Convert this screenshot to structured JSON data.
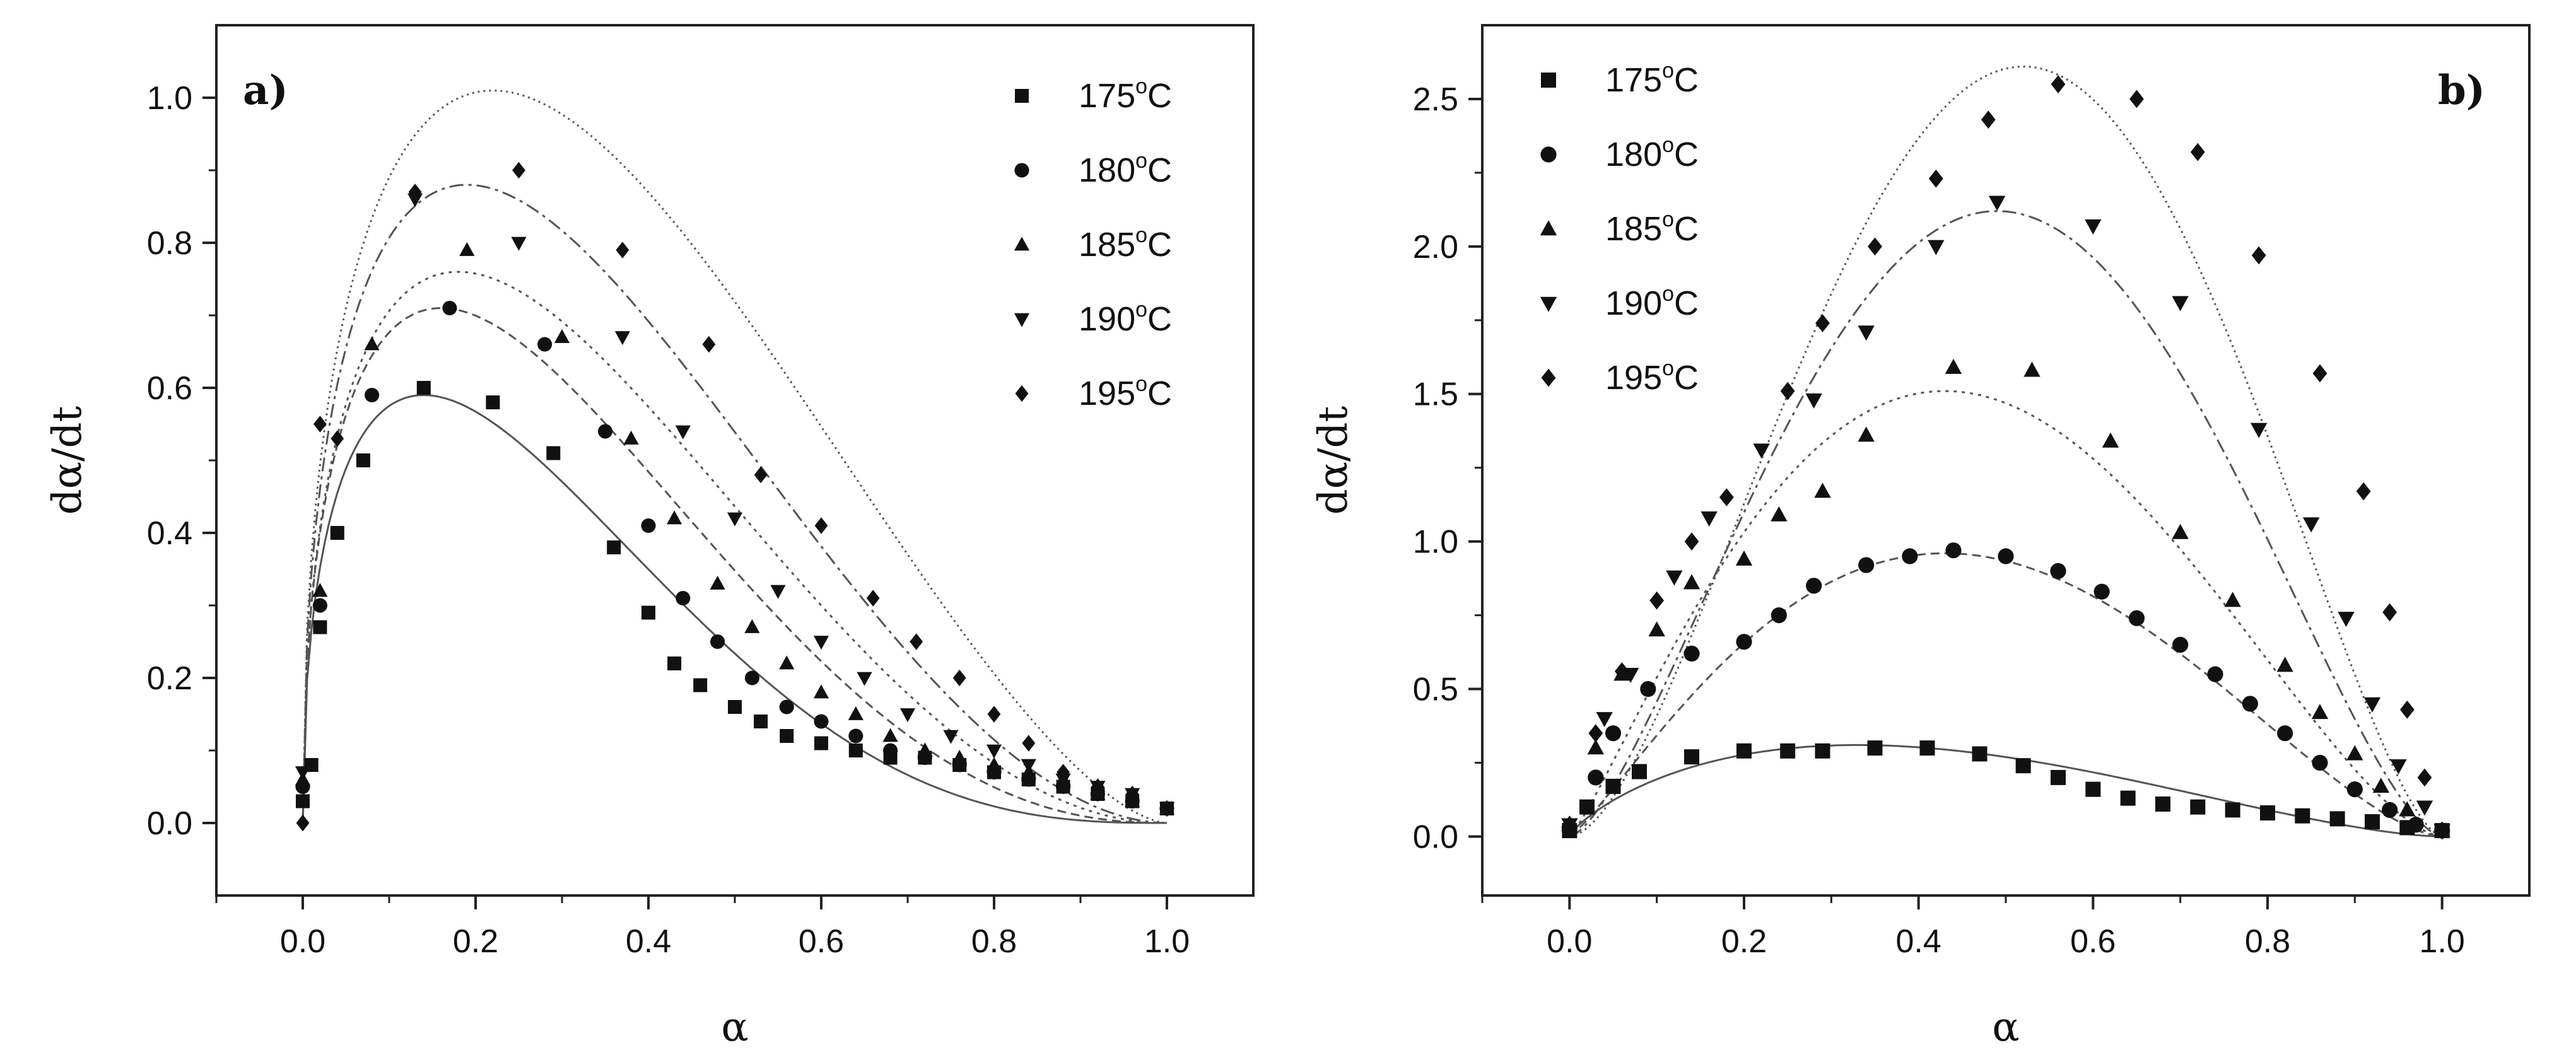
{
  "chart_data": [
    {
      "panel": "a)",
      "type": "scatter",
      "xlabel": "α",
      "ylabel": "dα/dt",
      "xlim": [
        -0.1,
        1.1
      ],
      "ylim": [
        -0.1,
        1.1
      ],
      "xticks": [
        "0.0",
        "0.2",
        "0.4",
        "0.6",
        "0.8",
        "1.0"
      ],
      "yticks": [
        "0.0",
        "0.2",
        "0.4",
        "0.6",
        "0.8",
        "1.0"
      ],
      "legend_position": "top-right",
      "series": [
        {
          "name": "175",
          "unit": "°C",
          "marker": "square",
          "points": [
            [
              0,
              0.03
            ],
            [
              0.01,
              0.08
            ],
            [
              0.02,
              0.27
            ],
            [
              0.04,
              0.4
            ],
            [
              0.07,
              0.5
            ],
            [
              0.14,
              0.6
            ],
            [
              0.22,
              0.58
            ],
            [
              0.29,
              0.51
            ],
            [
              0.36,
              0.38
            ],
            [
              0.4,
              0.29
            ],
            [
              0.43,
              0.22
            ],
            [
              0.46,
              0.19
            ],
            [
              0.5,
              0.16
            ],
            [
              0.53,
              0.14
            ],
            [
              0.56,
              0.12
            ],
            [
              0.6,
              0.11
            ],
            [
              0.64,
              0.1
            ],
            [
              0.68,
              0.09
            ],
            [
              0.72,
              0.09
            ],
            [
              0.76,
              0.08
            ],
            [
              0.8,
              0.07
            ],
            [
              0.84,
              0.06
            ],
            [
              0.88,
              0.05
            ],
            [
              0.92,
              0.04
            ],
            [
              0.96,
              0.03
            ],
            [
              1.0,
              0.02
            ]
          ],
          "fit_peak": [
            0.14,
            0.59
          ]
        },
        {
          "name": "180",
          "unit": "°C",
          "marker": "circle",
          "points": [
            [
              0,
              0.05
            ],
            [
              0.02,
              0.3
            ],
            [
              0.08,
              0.59
            ],
            [
              0.17,
              0.71
            ],
            [
              0.28,
              0.66
            ],
            [
              0.35,
              0.54
            ],
            [
              0.4,
              0.41
            ],
            [
              0.44,
              0.31
            ],
            [
              0.48,
              0.25
            ],
            [
              0.52,
              0.2
            ],
            [
              0.56,
              0.16
            ],
            [
              0.6,
              0.14
            ],
            [
              0.64,
              0.12
            ],
            [
              0.68,
              0.1
            ],
            [
              0.72,
              0.09
            ],
            [
              0.76,
              0.08
            ],
            [
              0.8,
              0.07
            ],
            [
              0.84,
              0.06
            ],
            [
              0.88,
              0.05
            ],
            [
              0.92,
              0.04
            ],
            [
              0.96,
              0.03
            ],
            [
              1.0,
              0.02
            ]
          ],
          "fit_peak": [
            0.16,
            0.71
          ]
        },
        {
          "name": "185",
          "unit": "°C",
          "marker": "triangle-up",
          "points": [
            [
              0,
              0.06
            ],
            [
              0.02,
              0.32
            ],
            [
              0.08,
              0.66
            ],
            [
              0.19,
              0.79
            ],
            [
              0.3,
              0.67
            ],
            [
              0.38,
              0.53
            ],
            [
              0.43,
              0.42
            ],
            [
              0.48,
              0.33
            ],
            [
              0.52,
              0.27
            ],
            [
              0.56,
              0.22
            ],
            [
              0.6,
              0.18
            ],
            [
              0.64,
              0.15
            ],
            [
              0.68,
              0.12
            ],
            [
              0.72,
              0.1
            ],
            [
              0.76,
              0.09
            ],
            [
              0.8,
              0.08
            ],
            [
              0.84,
              0.07
            ],
            [
              0.88,
              0.06
            ],
            [
              0.92,
              0.04
            ],
            [
              0.96,
              0.03
            ],
            [
              1.0,
              0.02
            ]
          ],
          "fit_peak": [
            0.18,
            0.76
          ]
        },
        {
          "name": "190",
          "unit": "°C",
          "marker": "triangle-down",
          "points": [
            [
              0,
              0.07
            ],
            [
              0.13,
              0.86
            ],
            [
              0.25,
              0.8
            ],
            [
              0.37,
              0.67
            ],
            [
              0.44,
              0.54
            ],
            [
              0.5,
              0.42
            ],
            [
              0.55,
              0.32
            ],
            [
              0.6,
              0.25
            ],
            [
              0.65,
              0.2
            ],
            [
              0.7,
              0.15
            ],
            [
              0.75,
              0.12
            ],
            [
              0.8,
              0.1
            ],
            [
              0.84,
              0.08
            ],
            [
              0.88,
              0.06
            ],
            [
              0.92,
              0.05
            ],
            [
              0.96,
              0.04
            ],
            [
              1.0,
              0.02
            ]
          ],
          "fit_peak": [
            0.19,
            0.88
          ]
        },
        {
          "name": "195",
          "unit": "°C",
          "marker": "diamond",
          "points": [
            [
              0,
              0.0
            ],
            [
              0.02,
              0.55
            ],
            [
              0.04,
              0.53
            ],
            [
              0.13,
              0.87
            ],
            [
              0.25,
              0.9
            ],
            [
              0.37,
              0.79
            ],
            [
              0.47,
              0.66
            ],
            [
              0.53,
              0.48
            ],
            [
              0.6,
              0.41
            ],
            [
              0.66,
              0.31
            ],
            [
              0.71,
              0.25
            ],
            [
              0.76,
              0.2
            ],
            [
              0.8,
              0.15
            ],
            [
              0.84,
              0.11
            ],
            [
              0.88,
              0.07
            ],
            [
              0.92,
              0.05
            ],
            [
              0.96,
              0.04
            ],
            [
              1.0,
              0.02
            ]
          ],
          "fit_peak": [
            0.22,
            1.01
          ]
        }
      ]
    },
    {
      "panel": "b)",
      "type": "scatter",
      "xlabel": "α",
      "ylabel": "dα/dt",
      "xlim": [
        -0.1,
        1.1
      ],
      "ylim": [
        -0.2,
        2.75
      ],
      "xticks": [
        "0.0",
        "0.2",
        "0.4",
        "0.6",
        "0.8",
        "1.0"
      ],
      "yticks": [
        "0.0",
        "0.5",
        "1.0",
        "1.5",
        "2.0",
        "2.5"
      ],
      "legend_position": "top-left",
      "series": [
        {
          "name": "175",
          "unit": "°C",
          "marker": "square",
          "points": [
            [
              0,
              0.02
            ],
            [
              0.02,
              0.1
            ],
            [
              0.05,
              0.17
            ],
            [
              0.08,
              0.22
            ],
            [
              0.14,
              0.27
            ],
            [
              0.2,
              0.29
            ],
            [
              0.25,
              0.29
            ],
            [
              0.29,
              0.29
            ],
            [
              0.35,
              0.3
            ],
            [
              0.41,
              0.3
            ],
            [
              0.47,
              0.28
            ],
            [
              0.52,
              0.24
            ],
            [
              0.56,
              0.2
            ],
            [
              0.6,
              0.16
            ],
            [
              0.64,
              0.13
            ],
            [
              0.68,
              0.11
            ],
            [
              0.72,
              0.1
            ],
            [
              0.76,
              0.09
            ],
            [
              0.8,
              0.08
            ],
            [
              0.84,
              0.07
            ],
            [
              0.88,
              0.06
            ],
            [
              0.92,
              0.05
            ],
            [
              0.96,
              0.03
            ],
            [
              1.0,
              0.02
            ]
          ],
          "fit_peak": [
            0.33,
            0.31
          ]
        },
        {
          "name": "180",
          "unit": "°C",
          "marker": "circle",
          "points": [
            [
              0,
              0.03
            ],
            [
              0.03,
              0.2
            ],
            [
              0.05,
              0.35
            ],
            [
              0.09,
              0.5
            ],
            [
              0.14,
              0.62
            ],
            [
              0.2,
              0.66
            ],
            [
              0.24,
              0.75
            ],
            [
              0.28,
              0.85
            ],
            [
              0.34,
              0.92
            ],
            [
              0.39,
              0.95
            ],
            [
              0.44,
              0.97
            ],
            [
              0.5,
              0.95
            ],
            [
              0.56,
              0.9
            ],
            [
              0.61,
              0.83
            ],
            [
              0.65,
              0.74
            ],
            [
              0.7,
              0.65
            ],
            [
              0.74,
              0.55
            ],
            [
              0.78,
              0.45
            ],
            [
              0.82,
              0.35
            ],
            [
              0.86,
              0.25
            ],
            [
              0.9,
              0.16
            ],
            [
              0.94,
              0.09
            ],
            [
              0.97,
              0.04
            ],
            [
              1.0,
              0.02
            ]
          ],
          "fit_peak": [
            0.43,
            0.96
          ]
        },
        {
          "name": "185",
          "unit": "°C",
          "marker": "triangle-up",
          "points": [
            [
              0,
              0.04
            ],
            [
              0.03,
              0.3
            ],
            [
              0.06,
              0.55
            ],
            [
              0.1,
              0.7
            ],
            [
              0.14,
              0.86
            ],
            [
              0.2,
              0.94
            ],
            [
              0.24,
              1.09
            ],
            [
              0.29,
              1.17
            ],
            [
              0.34,
              1.36
            ],
            [
              0.44,
              1.59
            ],
            [
              0.53,
              1.58
            ],
            [
              0.62,
              1.34
            ],
            [
              0.7,
              1.03
            ],
            [
              0.76,
              0.8
            ],
            [
              0.82,
              0.58
            ],
            [
              0.86,
              0.42
            ],
            [
              0.9,
              0.28
            ],
            [
              0.93,
              0.17
            ],
            [
              0.96,
              0.09
            ],
            [
              1.0,
              0.02
            ]
          ],
          "fit_peak": [
            0.43,
            1.51
          ]
        },
        {
          "name": "190",
          "unit": "°C",
          "marker": "triangle-down",
          "points": [
            [
              0,
              0.04
            ],
            [
              0.04,
              0.4
            ],
            [
              0.07,
              0.55
            ],
            [
              0.12,
              0.88
            ],
            [
              0.16,
              1.08
            ],
            [
              0.22,
              1.31
            ],
            [
              0.28,
              1.48
            ],
            [
              0.34,
              1.71
            ],
            [
              0.42,
              2.0
            ],
            [
              0.49,
              2.15
            ],
            [
              0.6,
              2.07
            ],
            [
              0.7,
              1.81
            ],
            [
              0.79,
              1.38
            ],
            [
              0.85,
              1.06
            ],
            [
              0.89,
              0.74
            ],
            [
              0.92,
              0.45
            ],
            [
              0.95,
              0.24
            ],
            [
              0.98,
              0.1
            ],
            [
              1.0,
              0.02
            ]
          ],
          "fit_peak": [
            0.49,
            2.12
          ]
        },
        {
          "name": "195",
          "unit": "°C",
          "marker": "diamond",
          "points": [
            [
              0,
              0.04
            ],
            [
              0.03,
              0.35
            ],
            [
              0.06,
              0.56
            ],
            [
              0.1,
              0.8
            ],
            [
              0.14,
              1.0
            ],
            [
              0.18,
              1.15
            ],
            [
              0.25,
              1.51
            ],
            [
              0.29,
              1.74
            ],
            [
              0.35,
              2.0
            ],
            [
              0.42,
              2.23
            ],
            [
              0.48,
              2.43
            ],
            [
              0.56,
              2.55
            ],
            [
              0.65,
              2.5
            ],
            [
              0.72,
              2.32
            ],
            [
              0.79,
              1.97
            ],
            [
              0.86,
              1.57
            ],
            [
              0.91,
              1.17
            ],
            [
              0.94,
              0.76
            ],
            [
              0.96,
              0.43
            ],
            [
              0.98,
              0.2
            ],
            [
              1.0,
              0.02
            ]
          ],
          "fit_peak": [
            0.52,
            2.61
          ]
        }
      ]
    }
  ]
}
